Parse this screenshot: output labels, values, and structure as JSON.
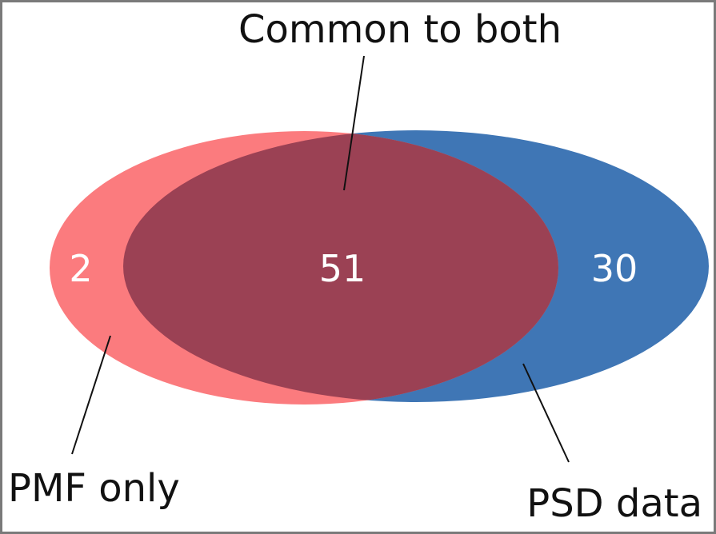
{
  "labels": {
    "common": "Common to both",
    "pmf_only": "PMF only",
    "psd_data": "PSD data"
  },
  "counts": {
    "pmf_only": "2",
    "common": "51",
    "psd_only": "30"
  },
  "colors": {
    "pmf_set": "#fb7b7e",
    "psd_set": "#3f76b5",
    "overlap": "#9b4154",
    "leader_line": "#111111",
    "frame": "#7a7a7a",
    "count_text": "#ffffff"
  }
}
